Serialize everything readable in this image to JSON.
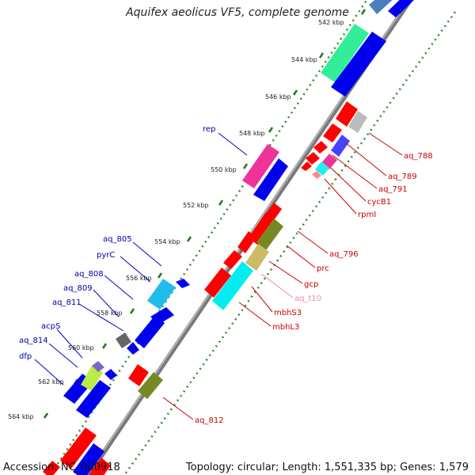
{
  "title": "Aquifex aeolicus VF5, complete genome",
  "footer": {
    "accession": "Accession: NC_000918",
    "summary": "Topology: circular; Length: 1,551,335 bp; Genes: 1,579"
  },
  "colors": {
    "backbone": "#8a8a8a",
    "tick_dots": "#2e8b2e",
    "label_forward": "#0000aa",
    "label_reverse": "#cc0000",
    "label_trna": "#ee88aa"
  },
  "ticks": [
    "542 kbp",
    "544 kbp",
    "546 kbp",
    "548 kbp",
    "550 kbp",
    "552 kbp",
    "554 kbp",
    "556 kbp",
    "558 kbp",
    "560 kbp",
    "562 kbp",
    "564 kbp"
  ],
  "labels_forward": [
    "rep",
    "aq_805",
    "pyrC",
    "aq_808",
    "aq_809",
    "aq_811",
    "acpS",
    "aq_814",
    "dfp"
  ],
  "labels_reverse": [
    "aq_788",
    "aq_789",
    "aq_791",
    "cycB1",
    "rpmI",
    "aq_796",
    "prc",
    "gcp",
    "aq_t10",
    "mbhS3",
    "mbhL3",
    "aq_812"
  ]
}
